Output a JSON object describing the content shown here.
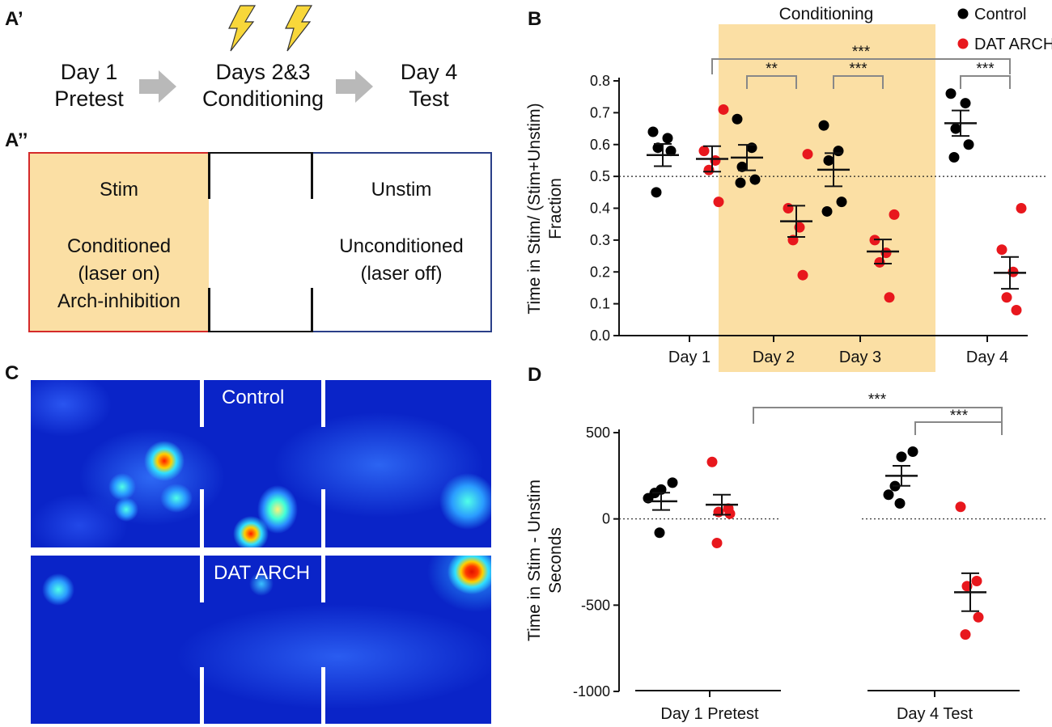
{
  "panel_labels": {
    "a1": "A’",
    "a2": "A’’",
    "b": "B",
    "c": "C",
    "d": "D"
  },
  "timeline": {
    "day1": {
      "line1": "Day 1",
      "line2": "Pretest"
    },
    "days23": {
      "line1": "Days 2&3",
      "line2": "Conditioning"
    },
    "day4": {
      "line1": "Day 4",
      "line2": "Test"
    },
    "icons": [
      "lightning-icon",
      "lightning-icon",
      "arrow-right-icon",
      "arrow-right-icon"
    ]
  },
  "chamber": {
    "stim_title": "Stim",
    "stim_desc": [
      "Conditioned",
      "(laser on)",
      "Arch-inhibition"
    ],
    "unstim_title": "Unstim",
    "unstim_desc": [
      "Unconditioned",
      "(laser off)"
    ],
    "colors": {
      "stim_fill": "#fbdfa4",
      "stim_border": "#d42a2a",
      "unstim_border": "#2a3f88"
    }
  },
  "heatmaps": {
    "control_label": "Control",
    "arch_label": "DAT ARCH"
  },
  "colors": {
    "control": "#000000",
    "arch": "#e8171d",
    "conditioning_band": "#fbdfa4",
    "bracket": "#888888"
  },
  "chart_data": [
    {
      "type": "scatter",
      "title": "",
      "band_label": "Conditioning",
      "ylabel_line1": "Time in Stim/ (Stim+Unstim)",
      "ylabel_line2": "Fraction",
      "ylim": [
        0.0,
        0.8
      ],
      "yticks": [
        "0.0",
        "0.1",
        "0.2",
        "0.3",
        "0.4",
        "0.5",
        "0.6",
        "0.7",
        "0.8"
      ],
      "reference_line": 0.5,
      "categories": [
        "Day 1",
        "Day 2",
        "Day 3",
        "Day 4"
      ],
      "legend": [
        {
          "name": "Control"
        },
        {
          "name": "DAT ARCH"
        }
      ],
      "series": [
        {
          "name": "Control",
          "points": [
            [
              0.64,
              0.62,
              0.59,
              0.58,
              0.45
            ],
            [
              0.68,
              0.59,
              0.53,
              0.49,
              0.48
            ],
            [
              0.66,
              0.58,
              0.55,
              0.42,
              0.39
            ],
            [
              0.76,
              0.73,
              0.65,
              0.6,
              0.56
            ]
          ],
          "mean": [
            0.567,
            0.559,
            0.521,
            0.667
          ],
          "sem": [
            0.035,
            0.04,
            0.052,
            0.04
          ]
        },
        {
          "name": "DAT ARCH",
          "points": [
            [
              0.71,
              0.58,
              0.55,
              0.52,
              0.42
            ],
            [
              0.57,
              0.4,
              0.34,
              0.3,
              0.19
            ],
            [
              0.38,
              0.3,
              0.26,
              0.23,
              0.12
            ],
            [
              0.4,
              0.27,
              0.2,
              0.12,
              0.08
            ]
          ],
          "mean": [
            0.555,
            0.359,
            0.264,
            0.197
          ],
          "sem": [
            0.04,
            0.049,
            0.038,
            0.05
          ]
        }
      ],
      "significance": [
        {
          "label": "***",
          "from": "Day 1 DAT ARCH",
          "to": "Day 4 DAT ARCH"
        },
        {
          "label": "**",
          "group": "Day 2"
        },
        {
          "label": "***",
          "group": "Day 3"
        },
        {
          "label": "***",
          "group": "Day 4"
        }
      ]
    },
    {
      "type": "scatter",
      "ylabel_line1": "Time in Stim - Unstim",
      "ylabel_line2": "Seconds",
      "ylim": [
        -1000,
        500
      ],
      "yticks": [
        "500",
        "0",
        "-500",
        "-1000"
      ],
      "reference_line": 0,
      "categories": [
        "Day 1 Pretest",
        "Day 4 Test"
      ],
      "series": [
        {
          "name": "Control",
          "points": [
            [
              210,
              170,
              150,
              120,
              -80
            ],
            [
              390,
              360,
              190,
              140,
              90
            ]
          ],
          "mean": [
            102,
            250
          ],
          "sem": [
            50,
            58
          ]
        },
        {
          "name": "DAT ARCH",
          "points": [
            [
              330,
              60,
              40,
              30,
              -140
            ],
            [
              70,
              -360,
              -390,
              -570,
              -670
            ]
          ],
          "mean": [
            82,
            -425
          ],
          "sem": [
            58,
            110
          ]
        }
      ],
      "significance": [
        {
          "label": "***",
          "from": "Day 1 Pretest DAT ARCH",
          "to": "Day 4 Test DAT ARCH"
        },
        {
          "label": "***",
          "group": "Day 4 Test"
        }
      ]
    }
  ]
}
